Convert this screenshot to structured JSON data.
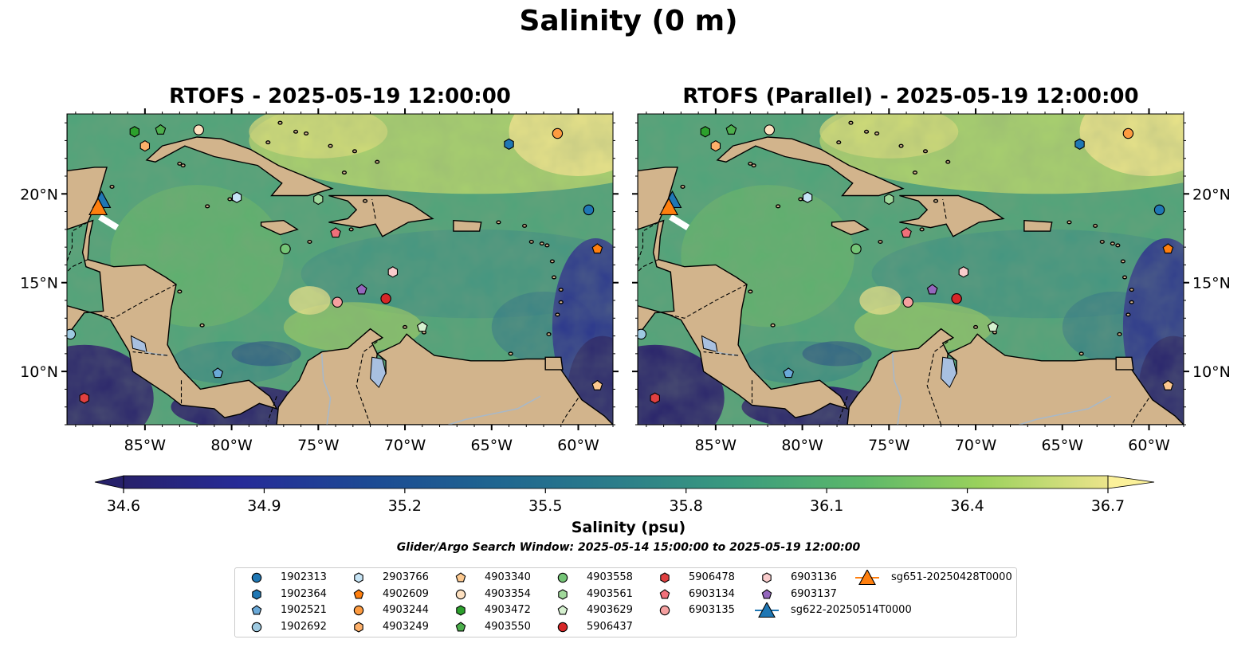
{
  "title": "Salinity (0 m)",
  "panels": [
    {
      "title": "RTOFS - 2025-05-19 12:00:00"
    },
    {
      "title": "RTOFS (Parallel) - 2025-05-19 12:00:00"
    }
  ],
  "axes": {
    "lon_ticks": [
      "85°W",
      "80°W",
      "75°W",
      "70°W",
      "65°W",
      "60°W"
    ],
    "lat_ticks": [
      "20°N",
      "15°N",
      "10°N"
    ],
    "extent": {
      "lon_min": -89.5,
      "lon_max": -58.0,
      "lat_min": 7.0,
      "lat_max": 24.5
    }
  },
  "colorbar": {
    "label": "Salinity (psu)",
    "ticks": [
      "34.6",
      "34.9",
      "35.2",
      "35.5",
      "35.8",
      "36.1",
      "36.4",
      "36.7"
    ],
    "min": 34.6,
    "max": 36.7,
    "colormap": "summer-deep (dark navy → teal → green → pale yellow)",
    "extend": "both"
  },
  "search_window": "Glider/Argo Search Window: 2025-05-14 15:00:00 to 2025-05-19 12:00:00",
  "colors": {
    "land": "#d2b48c",
    "lakes": "#a8c0e0",
    "rivers": "#a8b8c8"
  },
  "legend": [
    {
      "label": "1902313",
      "marker": "circle",
      "color": "#1f77b4"
    },
    {
      "label": "1902364",
      "marker": "hexagon",
      "color": "#1f77b4"
    },
    {
      "label": "1902521",
      "marker": "pentagon",
      "color": "#6aa9d8"
    },
    {
      "label": "1902692",
      "marker": "circle",
      "color": "#9ecae1"
    },
    {
      "label": "2903766",
      "marker": "hexagon",
      "color": "#c6e4f5"
    },
    {
      "label": "4902609",
      "marker": "pentagon",
      "color": "#ff7f0e"
    },
    {
      "label": "4903244",
      "marker": "circle",
      "color": "#fd9b40"
    },
    {
      "label": "4903249",
      "marker": "hexagon",
      "color": "#fdb06a"
    },
    {
      "label": "4903340",
      "marker": "pentagon",
      "color": "#fdc98f"
    },
    {
      "label": "4903354",
      "marker": "circle",
      "color": "#fde0c0"
    },
    {
      "label": "4903472",
      "marker": "hexagon",
      "color": "#2ca02c"
    },
    {
      "label": "4903550",
      "marker": "pentagon",
      "color": "#4caf4c"
    },
    {
      "label": "4903558",
      "marker": "circle",
      "color": "#74c476"
    },
    {
      "label": "4903561",
      "marker": "hexagon",
      "color": "#a1d99b"
    },
    {
      "label": "4903629",
      "marker": "pentagon",
      "color": "#d5f0cf"
    },
    {
      "label": "5906437",
      "marker": "circle",
      "color": "#d62728"
    },
    {
      "label": "5906478",
      "marker": "hexagon",
      "color": "#e04040"
    },
    {
      "label": "6903134",
      "marker": "pentagon",
      "color": "#f0707a"
    },
    {
      "label": "6903135",
      "marker": "circle",
      "color": "#f5a0a0"
    },
    {
      "label": "6903136",
      "marker": "hexagon",
      "color": "#f9cccc"
    },
    {
      "label": "6903137",
      "marker": "pentagon",
      "color": "#9467bd"
    },
    {
      "label": "sg622-20250514T0000",
      "marker": "triangle",
      "color": "#1f77b4"
    },
    {
      "label": "sg651-20250428T0000",
      "marker": "triangle",
      "color": "#ff7f0e"
    }
  ],
  "markers": [
    {
      "id": "1902313",
      "lon": -59.4,
      "lat": 19.1
    },
    {
      "id": "1902364",
      "lon": -64.0,
      "lat": 22.8
    },
    {
      "id": "1902521",
      "lon": -80.8,
      "lat": 9.9
    },
    {
      "id": "1902692",
      "lon": -89.3,
      "lat": 12.1
    },
    {
      "id": "2903766",
      "lon": -79.7,
      "lat": 19.8
    },
    {
      "id": "4902609",
      "lon": -58.9,
      "lat": 16.9
    },
    {
      "id": "4903244",
      "lon": -61.2,
      "lat": 23.4
    },
    {
      "id": "4903249",
      "lon": -85.0,
      "lat": 22.7
    },
    {
      "id": "4903340",
      "lon": -58.9,
      "lat": 9.2
    },
    {
      "id": "4903354",
      "lon": -81.9,
      "lat": 23.6
    },
    {
      "id": "4903472",
      "lon": -85.6,
      "lat": 23.5
    },
    {
      "id": "4903550",
      "lon": -84.1,
      "lat": 23.6
    },
    {
      "id": "4903558",
      "lon": -76.9,
      "lat": 16.9
    },
    {
      "id": "4903561",
      "lon": -75.0,
      "lat": 19.7
    },
    {
      "id": "4903629",
      "lon": -69.0,
      "lat": 12.5
    },
    {
      "id": "5906437",
      "lon": -71.1,
      "lat": 14.1
    },
    {
      "id": "5906478",
      "lon": -88.5,
      "lat": 8.5
    },
    {
      "id": "6903134",
      "lon": -74.0,
      "lat": 17.8
    },
    {
      "id": "6903135",
      "lon": -73.9,
      "lat": 13.9
    },
    {
      "id": "6903136",
      "lon": -70.7,
      "lat": 15.6
    },
    {
      "id": "6903137",
      "lon": -72.5,
      "lat": 14.6
    }
  ],
  "gliders": [
    {
      "id": "sg622-20250514T0000",
      "lon": -87.5,
      "lat": 19.6
    },
    {
      "id": "sg651-20250428T0000",
      "lon": -87.7,
      "lat": 19.2
    }
  ]
}
